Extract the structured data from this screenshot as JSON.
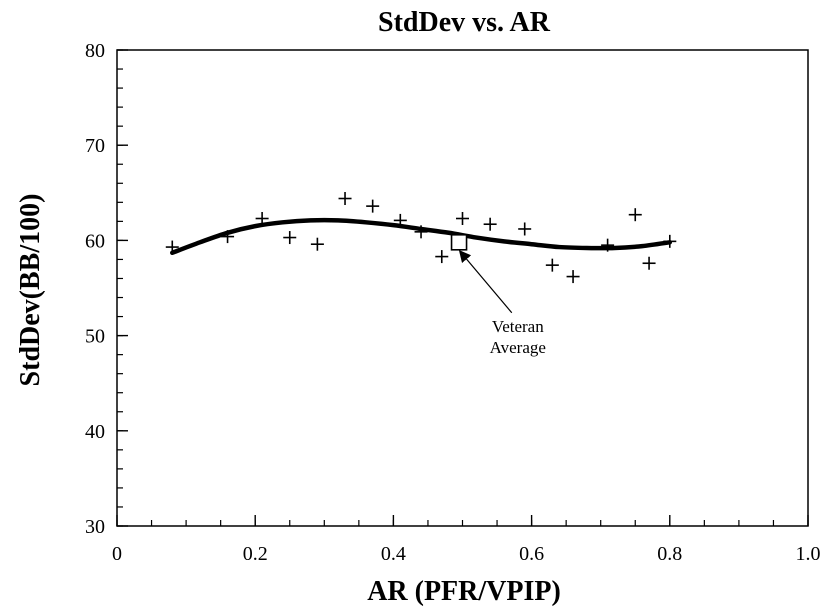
{
  "chart_data": {
    "type": "scatter",
    "title": "StdDev vs. AR",
    "xlabel": "AR (PFR/VPIP)",
    "ylabel": "StdDev(BB/100)",
    "xlim": [
      0,
      1.0
    ],
    "ylim": [
      30,
      80
    ],
    "x_ticks": [
      0,
      0.2,
      0.4,
      0.6,
      0.8,
      1.0
    ],
    "x_tick_labels": [
      "0",
      "0.2",
      "0.4",
      "0.6",
      "0.8",
      "1.0"
    ],
    "y_ticks": [
      30,
      40,
      50,
      60,
      70,
      80
    ],
    "y_tick_labels": [
      "30",
      "40",
      "50",
      "60",
      "70",
      "80"
    ],
    "grid": false,
    "series": [
      {
        "marker": "plus",
        "points": [
          {
            "x": 0.08,
            "y": 59.3
          },
          {
            "x": 0.16,
            "y": 60.4
          },
          {
            "x": 0.21,
            "y": 62.3
          },
          {
            "x": 0.25,
            "y": 60.3
          },
          {
            "x": 0.29,
            "y": 59.6
          },
          {
            "x": 0.33,
            "y": 64.4
          },
          {
            "x": 0.37,
            "y": 63.6
          },
          {
            "x": 0.41,
            "y": 62.1
          },
          {
            "x": 0.44,
            "y": 60.9
          },
          {
            "x": 0.47,
            "y": 58.3
          },
          {
            "x": 0.5,
            "y": 62.3
          },
          {
            "x": 0.54,
            "y": 61.7
          },
          {
            "x": 0.59,
            "y": 61.2
          },
          {
            "x": 0.63,
            "y": 57.4
          },
          {
            "x": 0.66,
            "y": 56.2
          },
          {
            "x": 0.71,
            "y": 59.5
          },
          {
            "x": 0.75,
            "y": 62.7
          },
          {
            "x": 0.77,
            "y": 57.6
          },
          {
            "x": 0.8,
            "y": 59.9
          }
        ]
      },
      {
        "type": "line",
        "style": "smooth-fit",
        "points": [
          {
            "x": 0.08,
            "y": 58.7
          },
          {
            "x": 0.12,
            "y": 59.8
          },
          {
            "x": 0.16,
            "y": 60.8
          },
          {
            "x": 0.2,
            "y": 61.5
          },
          {
            "x": 0.24,
            "y": 61.9
          },
          {
            "x": 0.28,
            "y": 62.1
          },
          {
            "x": 0.32,
            "y": 62.1
          },
          {
            "x": 0.36,
            "y": 61.9
          },
          {
            "x": 0.4,
            "y": 61.6
          },
          {
            "x": 0.44,
            "y": 61.2
          },
          {
            "x": 0.48,
            "y": 60.8
          },
          {
            "x": 0.52,
            "y": 60.3
          },
          {
            "x": 0.56,
            "y": 59.9
          },
          {
            "x": 0.6,
            "y": 59.6
          },
          {
            "x": 0.64,
            "y": 59.3
          },
          {
            "x": 0.68,
            "y": 59.2
          },
          {
            "x": 0.72,
            "y": 59.2
          },
          {
            "x": 0.76,
            "y": 59.4
          },
          {
            "x": 0.8,
            "y": 59.8
          }
        ]
      },
      {
        "marker": "square",
        "points": [
          {
            "x": 0.495,
            "y": 59.8
          }
        ]
      }
    ],
    "annotations": [
      {
        "text_lines": [
          "Veteran",
          "Average"
        ],
        "x": 0.58,
        "y": 50.4,
        "arrow_to": {
          "x": 0.497,
          "y": 58.8
        }
      }
    ]
  }
}
